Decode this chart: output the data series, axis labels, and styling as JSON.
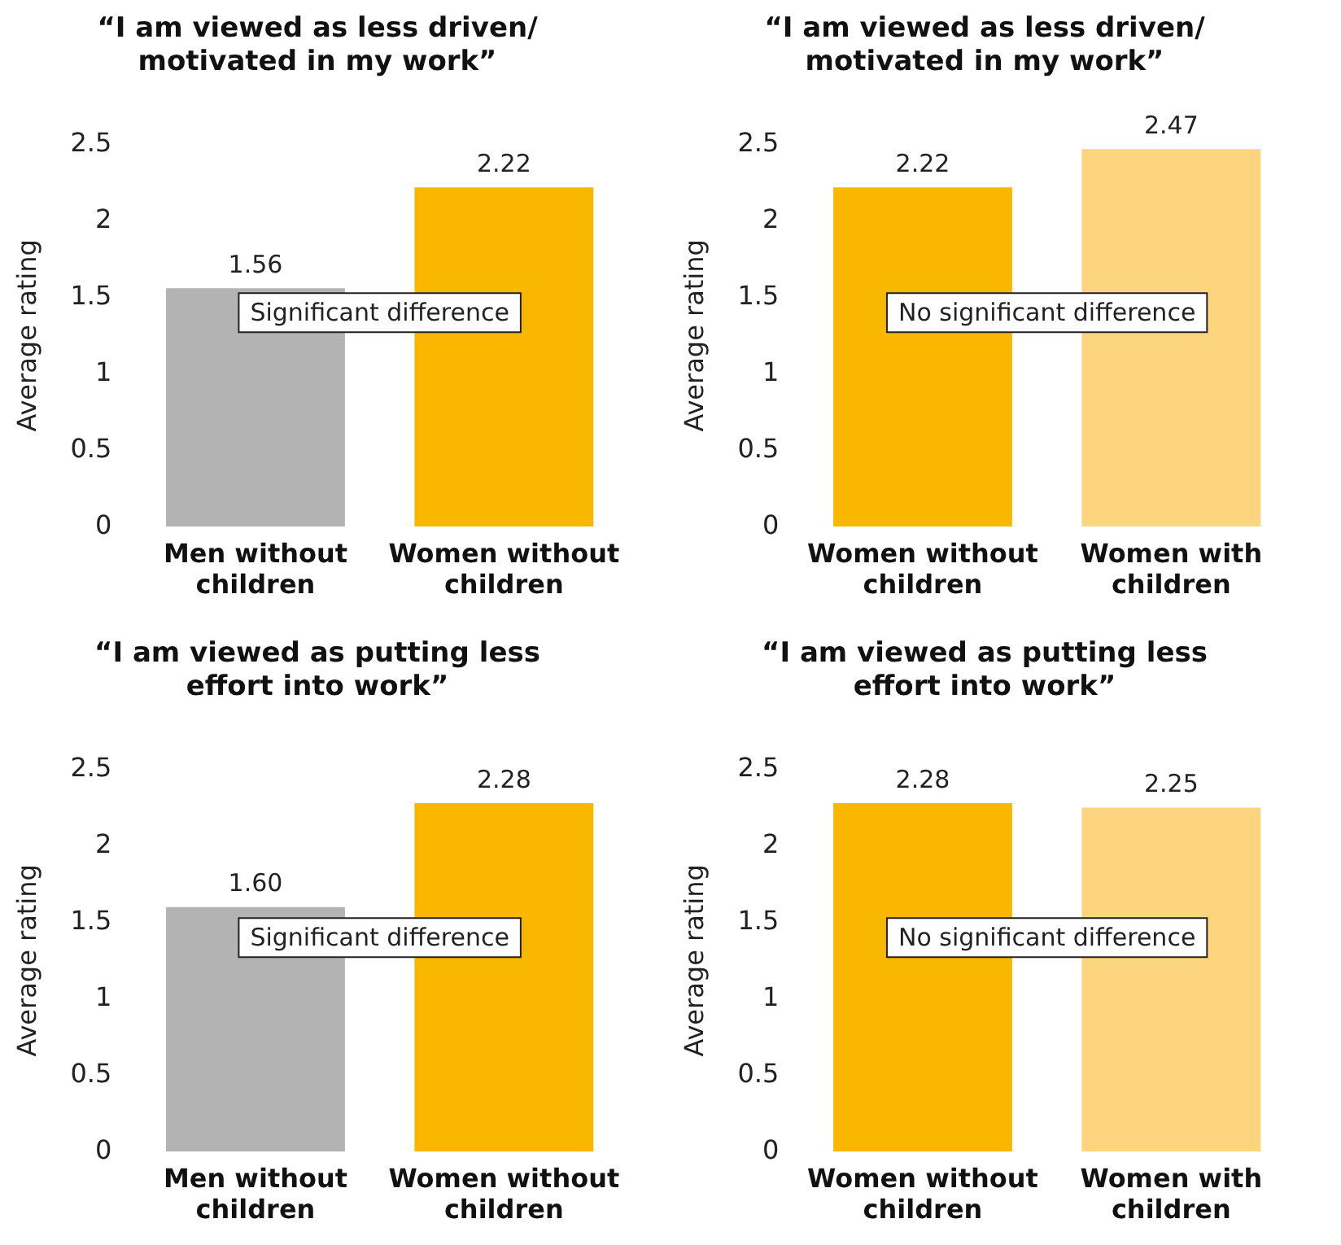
{
  "chart_data": [
    {
      "type": "bar",
      "title": "“I am viewed as less driven/\nmotivated in my work”",
      "ylabel": "Average rating",
      "categories": [
        "Men without children",
        "Women without children"
      ],
      "values": [
        1.56,
        2.22
      ],
      "colors": [
        "#b3b3b3",
        "#f9b700"
      ],
      "ylim": [
        0,
        2.5
      ],
      "yticks": [
        0,
        0.5,
        1,
        1.5,
        2,
        2.5
      ],
      "grid": false,
      "legend": false,
      "data_labels": true,
      "annotations": [
        "Significant difference"
      ]
    },
    {
      "type": "bar",
      "title": "“I am viewed as less driven/\nmotivated in my work”",
      "ylabel": "Average rating",
      "categories": [
        "Women without children",
        "Women with children"
      ],
      "values": [
        2.22,
        2.47
      ],
      "colors": [
        "#f9b700",
        "#fdd57e"
      ],
      "ylim": [
        0,
        2.5
      ],
      "yticks": [
        0,
        0.5,
        1,
        1.5,
        2,
        2.5
      ],
      "grid": false,
      "legend": false,
      "data_labels": true,
      "annotations": [
        "No significant difference"
      ]
    },
    {
      "type": "bar",
      "title": "“I am viewed as putting less\neffort into work”",
      "ylabel": "Average rating",
      "categories": [
        "Men without children",
        "Women without children"
      ],
      "values": [
        1.6,
        2.28
      ],
      "value_labels": [
        "1.60",
        "2.28"
      ],
      "colors": [
        "#b3b3b3",
        "#f9b700"
      ],
      "ylim": [
        0,
        2.5
      ],
      "yticks": [
        0,
        0.5,
        1,
        1.5,
        2,
        2.5
      ],
      "grid": false,
      "legend": false,
      "annotations": [
        "Significant difference"
      ]
    },
    {
      "type": "bar",
      "title": "“I am viewed as putting less\neffort into work”",
      "ylabel": "Average rating",
      "categories": [
        "Women without children",
        "Women with children"
      ],
      "values": [
        2.28,
        2.25
      ],
      "colors": [
        "#f9b700",
        "#fdd57e"
      ],
      "ylim": [
        0,
        2.5
      ],
      "yticks": [
        0,
        0.5,
        1,
        1.5,
        2,
        2.5
      ],
      "grid": false,
      "legend": false,
      "data_labels": true,
      "annotations": [
        "No significant difference"
      ]
    }
  ]
}
